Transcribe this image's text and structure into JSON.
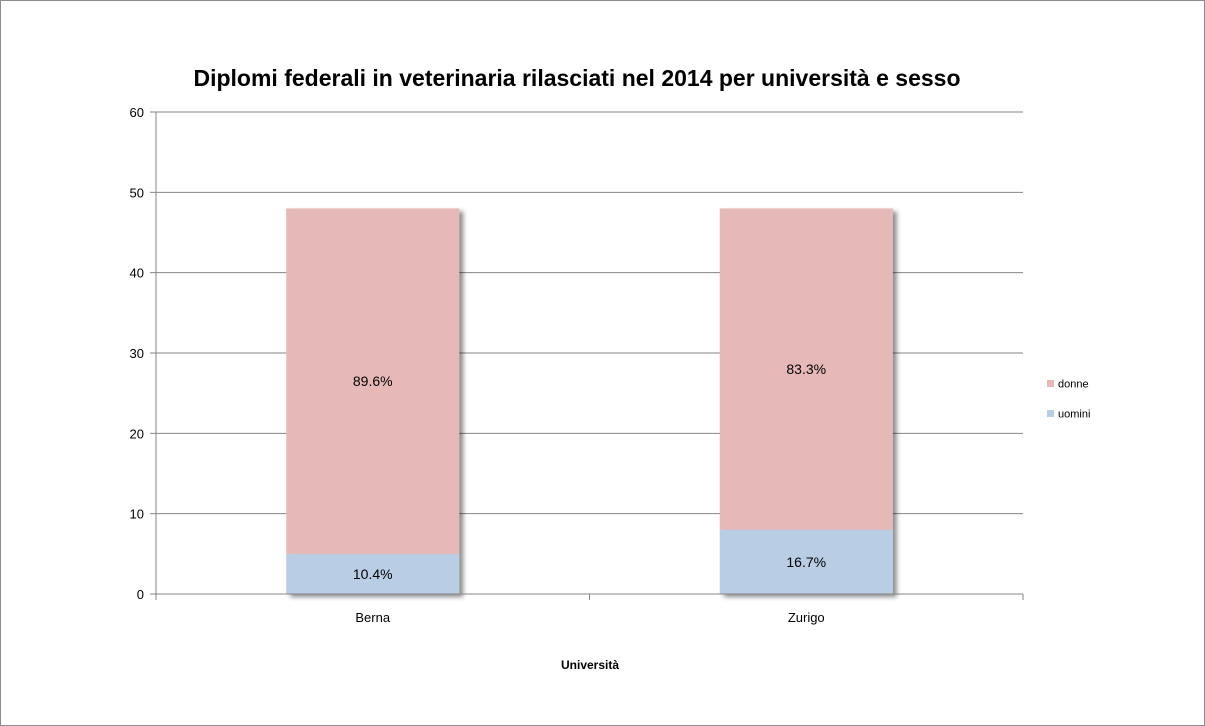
{
  "chart_data": {
    "type": "bar",
    "stacked": true,
    "title": "Diplomi federali in veterinaria rilasciati nel 2014 per università e sesso",
    "xlabel": "Università",
    "ylabel": "",
    "categories": [
      "Berna",
      "Zurigo"
    ],
    "ylim": [
      0,
      60
    ],
    "yticks": [
      0,
      10,
      20,
      30,
      40,
      50,
      60
    ],
    "grid": true,
    "legend_position": "right",
    "series": [
      {
        "name": "uomini",
        "values": [
          5,
          8
        ],
        "labels": [
          "10.4%",
          "16.7%"
        ],
        "color": "#b9cde5"
      },
      {
        "name": "donne",
        "values": [
          43,
          40
        ],
        "labels": [
          "89.6%",
          "83.3%"
        ],
        "color": "#e6b9b8"
      }
    ],
    "legend_order": [
      "donne",
      "uomini"
    ]
  }
}
